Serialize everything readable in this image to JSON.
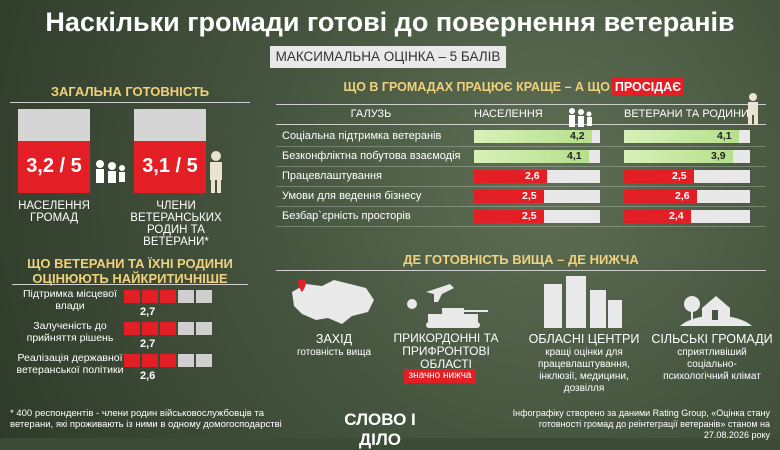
{
  "title": "Наскільки громади готові до повернення ветеранів",
  "subtitle": "МАКСИМАЛЬНА ОЦІНКА – 5 БАЛІВ",
  "overall": {
    "heading": "ЗАГАЛЬНА ГОТОВНІСТЬ",
    "community": {
      "value": "3,2 / 5",
      "score": 3.2,
      "label": "НАСЕЛЕННЯ ГРОМАД"
    },
    "veterans": {
      "value": "3,1 / 5",
      "score": 3.1,
      "label": "ЧЛЕНИ ВЕТЕРАНСЬКИХ РОДИН ТА ВЕТЕРАНИ*"
    }
  },
  "table": {
    "heading": "ЩО В ГРОМАДАХ ПРАЦЮЄ КРАЩЕ – А ЩО",
    "badge": "ПРОСІДАЄ",
    "col_industry": "ГАЛУЗЬ",
    "col_population": "НАСЕЛЕННЯ",
    "col_veterans": "ВЕТЕРАНИ ТА РОДИНИ*",
    "rows": [
      {
        "label": "Соціальна підтримка ветеранів",
        "population": "4,2",
        "population_value": 4.2,
        "veterans": "4,1",
        "veterans_value": 4.1,
        "color": "green"
      },
      {
        "label": "Безконфліктна побутова взаємодія",
        "population": "4,1",
        "population_value": 4.1,
        "veterans": "3,9",
        "veterans_value": 3.9,
        "color": "green"
      },
      {
        "label": "Працевлаштування",
        "population": "2,6",
        "population_value": 2.6,
        "veterans": "2,5",
        "veterans_value": 2.5,
        "color": "red"
      },
      {
        "label": "Умови для ведення бізнесу",
        "population": "2,5",
        "population_value": 2.5,
        "veterans": "2,6",
        "veterans_value": 2.6,
        "color": "red"
      },
      {
        "label": "Безбар`єрність просторів",
        "population": "2,5",
        "population_value": 2.5,
        "veterans": "2,4",
        "veterans_value": 2.4,
        "color": "red"
      }
    ]
  },
  "critical": {
    "heading": "ЩО ВЕТЕРАНИ ТА ЇХНІ РОДИНИ ОЦІНЮЮТЬ НАЙКРИТИЧНІШЕ",
    "items": [
      {
        "label": "Підтримка місцевої влади",
        "value": "2,7",
        "score": 2.7
      },
      {
        "label": "Залученість до прийняття рішень",
        "value": "2,7",
        "score": 2.7
      },
      {
        "label": "Реалізація державної ветеранської політики",
        "value": "2,6",
        "score": 2.6
      }
    ]
  },
  "regions": {
    "heading": "ДЕ ГОТОВНІСТЬ ВИЩА – ДЕ НИЖЧА",
    "items": [
      {
        "title": "ЗАХІД",
        "desc": "готовність вища",
        "icon": "ukraine-map-icon"
      },
      {
        "title": "ПРИКОРДОННІ ТА ПРИФРОНТОВІ ОБЛАСТІ",
        "desc": "значно нижча",
        "icon": "military-vehicles-icon"
      },
      {
        "title": "ОБЛАСНІ ЦЕНТРИ",
        "desc": "кращі оцінки для працевлаштування, інклюзії, медицини, дозвілля",
        "icon": "buildings-icon"
      },
      {
        "title": "СІЛЬСЬКІ ГРОМАДИ",
        "desc": "сприятливіший соціально-психологічний клімат",
        "icon": "rural-house-icon"
      }
    ]
  },
  "footer": {
    "note": "* 400 респондентів - члени родин військовослужбовців та ветерани, які проживають із ними в одному домогосподарстві",
    "logo": "СЛОВО І ДІЛО",
    "source": "Інфографіку створено за даними Rating Group, «Оцінка стану готовності громад до реінтеграції ветеранів» станом на 27.08.2026 року"
  },
  "colors": {
    "accent_red": "#e31e24",
    "heading_yellow": "#f1d27c",
    "bar_green": "#b5e08c"
  }
}
